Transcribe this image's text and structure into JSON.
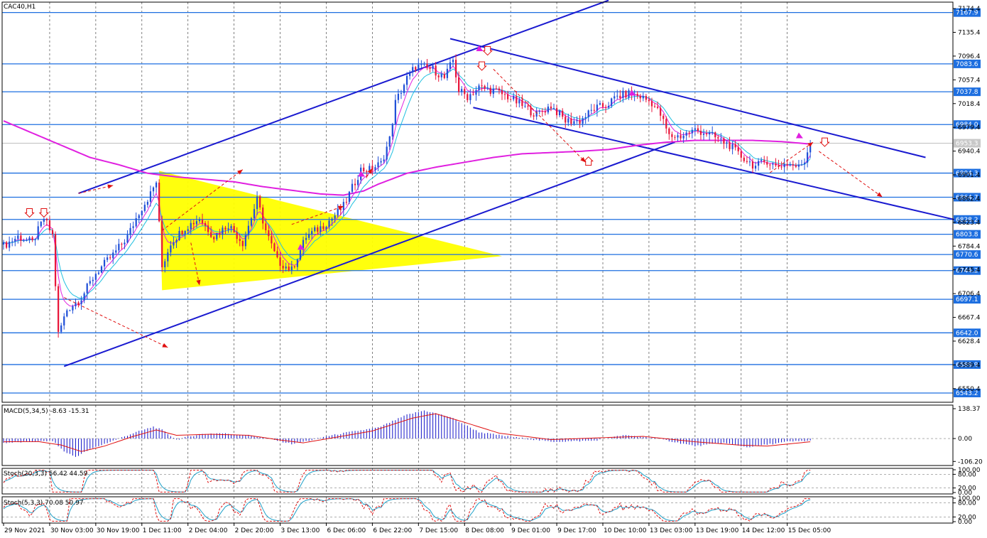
{
  "chart_data": {
    "type": "candlestick",
    "symbol_label": "CAC40,H1",
    "main": {
      "ylim": [
        6528.0,
        7185.0
      ],
      "y_ticks": [
        "7174.4",
        "7135.4",
        "7096.4",
        "7057.4",
        "7018.4",
        "6979.4",
        "6940.4",
        "6901.4",
        "6862.4",
        "6823.4",
        "6784.4",
        "6745.4",
        "6706.4",
        "6667.4",
        "6628.4",
        "6589.4",
        "6550.4"
      ],
      "levels": [
        {
          "label": "7167.9",
          "value": 7167.9
        },
        {
          "label": "7083.6",
          "value": 7083.6
        },
        {
          "label": "7037.8",
          "value": 7037.8
        },
        {
          "label": "6984.0",
          "value": 6984.0
        },
        {
          "label": "6904.3",
          "value": 6904.3
        },
        {
          "label": "6864.7",
          "value": 6864.7
        },
        {
          "label": "6828.2",
          "value": 6828.2
        },
        {
          "label": "6803.8",
          "value": 6803.8
        },
        {
          "label": "6770.6",
          "value": 6770.6
        },
        {
          "label": "6744.2",
          "value": 6744.2
        },
        {
          "label": "6697.1",
          "value": 6697.1
        },
        {
          "label": "6642.0",
          "value": 6642.0
        },
        {
          "label": "6589.9",
          "value": 6589.9
        },
        {
          "label": "6543.2",
          "value": 6543.2
        }
      ],
      "current_price": {
        "label": "6953.3",
        "value": 6953.3
      },
      "price_path": [
        [
          0,
          6785
        ],
        [
          5,
          6800
        ],
        [
          10,
          6790
        ],
        [
          14,
          6830
        ],
        [
          17,
          6802
        ],
        [
          19,
          6640
        ],
        [
          22,
          6680
        ],
        [
          27,
          6700
        ],
        [
          32,
          6740
        ],
        [
          38,
          6770
        ],
        [
          43,
          6800
        ],
        [
          47,
          6840
        ],
        [
          51,
          6870
        ],
        [
          53,
          6890
        ],
        [
          55,
          6750
        ],
        [
          58,
          6790
        ],
        [
          63,
          6815
        ],
        [
          68,
          6830
        ],
        [
          73,
          6800
        ],
        [
          78,
          6820
        ],
        [
          83,
          6790
        ],
        [
          88,
          6860
        ],
        [
          91,
          6810
        ],
        [
          95,
          6760
        ],
        [
          100,
          6745
        ],
        [
          105,
          6800
        ],
        [
          110,
          6815
        ],
        [
          114,
          6830
        ],
        [
          118,
          6850
        ],
        [
          121,
          6880
        ],
        [
          124,
          6910
        ],
        [
          127,
          6910
        ],
        [
          131,
          6920
        ],
        [
          134,
          6960
        ],
        [
          136,
          7020
        ],
        [
          140,
          7060
        ],
        [
          143,
          7080
        ],
        [
          149,
          7075
        ],
        [
          153,
          7060
        ],
        [
          156,
          7090
        ],
        [
          158,
          7040
        ],
        [
          161,
          7030
        ],
        [
          165,
          7045
        ],
        [
          170,
          7040
        ],
        [
          175,
          7030
        ],
        [
          180,
          7015
        ],
        [
          185,
          7000
        ],
        [
          190,
          7015
        ],
        [
          195,
          6990
        ],
        [
          200,
          6990
        ],
        [
          205,
          7010
        ],
        [
          209,
          7015
        ],
        [
          213,
          7030
        ],
        [
          217,
          7035
        ],
        [
          221,
          7030
        ],
        [
          225,
          7020
        ],
        [
          228,
          7000
        ],
        [
          231,
          6965
        ],
        [
          235,
          6965
        ],
        [
          240,
          6975
        ],
        [
          244,
          6970
        ],
        [
          248,
          6960
        ],
        [
          252,
          6950
        ],
        [
          255,
          6935
        ],
        [
          258,
          6925
        ],
        [
          261,
          6915
        ],
        [
          265,
          6925
        ],
        [
          268,
          6915
        ],
        [
          272,
          6920
        ],
        [
          276,
          6914
        ],
        [
          278,
          6925
        ],
        [
          280,
          6955
        ]
      ],
      "ma_slow_path": [
        [
          0,
          6990
        ],
        [
          10,
          6970
        ],
        [
          20,
          6950
        ],
        [
          30,
          6930
        ],
        [
          40,
          6918
        ],
        [
          50,
          6904
        ],
        [
          60,
          6898
        ],
        [
          70,
          6894
        ],
        [
          80,
          6890
        ],
        [
          90,
          6882
        ],
        [
          100,
          6876
        ],
        [
          110,
          6870
        ],
        [
          118,
          6868
        ],
        [
          125,
          6875
        ],
        [
          130,
          6886
        ],
        [
          140,
          6904
        ],
        [
          150,
          6914
        ],
        [
          160,
          6922
        ],
        [
          170,
          6930
        ],
        [
          180,
          6936
        ],
        [
          190,
          6938
        ],
        [
          200,
          6940
        ],
        [
          210,
          6943
        ],
        [
          220,
          6950
        ],
        [
          230,
          6955
        ],
        [
          240,
          6958
        ],
        [
          250,
          6958
        ],
        [
          260,
          6958
        ],
        [
          270,
          6956
        ],
        [
          280,
          6952
        ]
      ],
      "channel_lines": [
        [
          [
            26,
            6871
          ],
          [
            210,
            7188
          ]
        ],
        [
          [
            21,
            6587
          ],
          [
            233,
            6955
          ]
        ],
        [
          [
            155,
            7125
          ],
          [
            320,
            6930
          ]
        ],
        [
          [
            163,
            7012
          ],
          [
            330,
            6828
          ]
        ]
      ],
      "triangle": [
        [
          54,
          6908
        ],
        [
          55,
          6712
        ],
        [
          173,
          6768
        ]
      ],
      "red_arrows_dashed": [
        [
          [
            26,
            6871
          ],
          [
            38,
            6884
          ]
        ],
        [
          [
            55,
            6810
          ],
          [
            83,
            6910
          ]
        ],
        [
          [
            100,
            6820
          ],
          [
            118,
            6850
          ]
        ],
        [
          [
            21,
            6700
          ],
          [
            57,
            6618
          ]
        ],
        [
          [
            65,
            6790
          ],
          [
            68,
            6720
          ]
        ],
        [
          [
            170,
            7075
          ],
          [
            202,
            6922
          ]
        ],
        [
          [
            283,
            6940
          ],
          [
            305,
            6865
          ]
        ],
        [
          [
            266,
            6905
          ],
          [
            281,
            6955
          ]
        ],
        [
          [
            126,
            6898
          ],
          [
            128,
            6912
          ]
        ]
      ],
      "markers": [
        {
          "type": "down",
          "i": 9,
          "v": 6839
        },
        {
          "type": "down",
          "i": 14,
          "v": 6839
        },
        {
          "type": "down",
          "i": 168,
          "v": 7105
        },
        {
          "type": "down",
          "i": 166,
          "v": 7080
        },
        {
          "type": "up",
          "i": 203,
          "v": 6924
        },
        {
          "type": "down",
          "i": 285,
          "v": 6955
        },
        {
          "type": "tri",
          "i": 103,
          "v": 6782
        },
        {
          "type": "tri",
          "i": 218,
          "v": 7035
        },
        {
          "type": "tri",
          "i": 165,
          "v": 7108
        },
        {
          "type": "tri",
          "i": 276,
          "v": 6965
        },
        {
          "type": "tri",
          "i": 124,
          "v": 6902
        }
      ]
    },
    "macd": {
      "label": "MACD(5,34,5) -8.63 -15.31",
      "ylim": [
        -125.0,
        155.0
      ],
      "ticks": [
        "138.37",
        "0.00",
        "-106.20"
      ],
      "hist_path": [
        [
          0,
          -20
        ],
        [
          10,
          -15
        ],
        [
          17,
          -10
        ],
        [
          21,
          -60
        ],
        [
          25,
          -85
        ],
        [
          30,
          -50
        ],
        [
          38,
          -10
        ],
        [
          45,
          25
        ],
        [
          52,
          55
        ],
        [
          55,
          40
        ],
        [
          60,
          -5
        ],
        [
          68,
          20
        ],
        [
          75,
          25
        ],
        [
          85,
          15
        ],
        [
          92,
          0
        ],
        [
          100,
          -25
        ],
        [
          106,
          -10
        ],
        [
          112,
          10
        ],
        [
          120,
          30
        ],
        [
          130,
          50
        ],
        [
          140,
          110
        ],
        [
          146,
          130
        ],
        [
          155,
          100
        ],
        [
          165,
          30
        ],
        [
          175,
          10
        ],
        [
          190,
          -15
        ],
        [
          205,
          -10
        ],
        [
          215,
          15
        ],
        [
          225,
          5
        ],
        [
          240,
          -35
        ],
        [
          250,
          -20
        ],
        [
          258,
          -40
        ],
        [
          264,
          -30
        ],
        [
          272,
          -15
        ],
        [
          280,
          -10
        ]
      ],
      "signal_path": [
        [
          0,
          -15
        ],
        [
          12,
          -14
        ],
        [
          20,
          -30
        ],
        [
          27,
          -60
        ],
        [
          35,
          -35
        ],
        [
          45,
          10
        ],
        [
          53,
          40
        ],
        [
          60,
          15
        ],
        [
          72,
          20
        ],
        [
          85,
          15
        ],
        [
          95,
          -5
        ],
        [
          104,
          -20
        ],
        [
          115,
          5
        ],
        [
          128,
          35
        ],
        [
          142,
          95
        ],
        [
          150,
          115
        ],
        [
          160,
          75
        ],
        [
          172,
          25
        ],
        [
          190,
          -5
        ],
        [
          210,
          5
        ],
        [
          222,
          10
        ],
        [
          240,
          -15
        ],
        [
          255,
          -30
        ],
        [
          265,
          -35
        ],
        [
          280,
          -15
        ]
      ]
    },
    "stoch1": {
      "label": "Stoch(20,3,3) 56.42 44.59",
      "ylim": [
        0,
        100
      ],
      "ticks": [
        "100.00",
        "80.00",
        "20.00",
        "0.00"
      ]
    },
    "stoch2": {
      "label": "Stoch(5,3,3) 70.08 50.97",
      "ylim": [
        0,
        100
      ],
      "ticks": [
        "100.00",
        "80.00",
        "20.00",
        "0.00"
      ]
    },
    "x_labels": [
      {
        "i": 0,
        "label": "29 Nov 2021"
      },
      {
        "i": 16,
        "label": "30 Nov 03:00"
      },
      {
        "i": 32,
        "label": "30 Nov 19:00"
      },
      {
        "i": 48,
        "label": "1 Dec 11:00"
      },
      {
        "i": 64,
        "label": "2 Dec 04:00"
      },
      {
        "i": 80,
        "label": "2 Dec 20:00"
      },
      {
        "i": 96,
        "label": "3 Dec 13:00"
      },
      {
        "i": 112,
        "label": "6 Dec 06:00"
      },
      {
        "i": 128,
        "label": "6 Dec 22:00"
      },
      {
        "i": 144,
        "label": "7 Dec 15:00"
      },
      {
        "i": 160,
        "label": "8 Dec 08:00"
      },
      {
        "i": 176,
        "label": "9 Dec 01:00"
      },
      {
        "i": 192,
        "label": "9 Dec 17:00"
      },
      {
        "i": 208,
        "label": "10 Dec 10:00"
      },
      {
        "i": 224,
        "label": "13 Dec 03:00"
      },
      {
        "i": 240,
        "label": "13 Dec 19:00"
      },
      {
        "i": 256,
        "label": "14 Dec 12:00"
      },
      {
        "i": 272,
        "label": "15 Dec 05:00"
      }
    ],
    "colors": {
      "bull": "#1f4fd8",
      "bear": "#e8163a",
      "level": "#1e6fe0",
      "level_label_bg": "#1e6fe0",
      "channel": "#1a1ad0",
      "triangle": "#ffff00",
      "ma_slow": "#e020e0",
      "ma_fast1": "#e020e0",
      "ma_fast2": "#20c0e0",
      "arrow": "#e01010",
      "macd_hist": "#1414c8",
      "macd_signal": "#e01010",
      "stoch_main": "#e01010",
      "stoch_signal": "#1fa0c8",
      "grid": "#000000"
    }
  }
}
